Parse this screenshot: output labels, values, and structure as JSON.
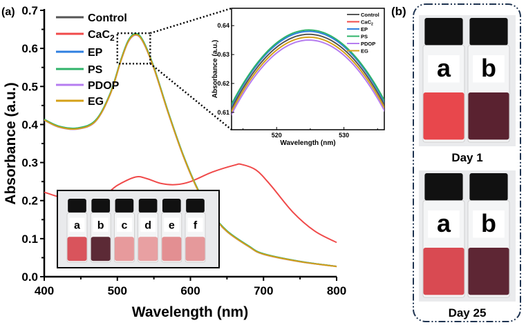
{
  "chart_data": [
    {
      "panel_label": "(a)",
      "type": "line",
      "xlabel": "Wavelength (nm)",
      "ylabel": "Absorbance (a.u.)",
      "xlim": [
        400,
        800
      ],
      "ylim": [
        0.0,
        0.7
      ],
      "xticks": [
        "400",
        "500",
        "600",
        "700",
        "800"
      ],
      "yticks": [
        "0.0",
        "0.1",
        "0.2",
        "0.3",
        "0.4",
        "0.5",
        "0.6",
        "0.7"
      ],
      "legend_position": "top-left",
      "series": [
        {
          "name": "Control",
          "sub": "",
          "color": "#555555",
          "offset": -0.001
        },
        {
          "name": "CaC",
          "sub": "2",
          "color": "#f04a4a",
          "offset": 0
        },
        {
          "name": "EP",
          "sub": "",
          "color": "#2f7fe0",
          "offset": 0.0005
        },
        {
          "name": "PS",
          "sub": "",
          "color": "#2fb36a",
          "offset": 0.001
        },
        {
          "name": "PDOP",
          "sub": "",
          "color": "#b57cf0",
          "offset": -0.003
        },
        {
          "name": "EG",
          "sub": "",
          "color": "#d4a017",
          "offset": -0.002
        }
      ],
      "nanoparticle_curve": {
        "x": [
          400,
          420,
          445,
          470,
          490,
          505,
          515,
          525,
          535,
          550,
          570,
          590,
          610,
          630,
          650,
          680,
          700,
          750,
          800
        ],
        "y": [
          0.413,
          0.395,
          0.39,
          0.41,
          0.48,
          0.57,
          0.62,
          0.638,
          0.62,
          0.55,
          0.43,
          0.32,
          0.23,
          0.165,
          0.12,
          0.08,
          0.06,
          0.04,
          0.027
        ]
      },
      "cac2_curve": {
        "x": [
          400,
          430,
          460,
          480,
          500,
          525,
          540,
          560,
          580,
          600,
          630,
          660,
          670,
          690,
          710,
          740,
          770,
          800
        ],
        "y": [
          0.222,
          0.205,
          0.203,
          0.21,
          0.24,
          0.262,
          0.258,
          0.245,
          0.242,
          0.25,
          0.275,
          0.293,
          0.295,
          0.28,
          0.24,
          0.17,
          0.12,
          0.09
        ]
      },
      "zoom_region": {
        "x": [
          500,
          545
        ],
        "y": [
          0.56,
          0.64
        ]
      },
      "photo_labels": [
        "a",
        "b",
        "c",
        "d",
        "e",
        "f"
      ]
    },
    {
      "type": "line",
      "role": "inset",
      "xlabel": "Wavelength (nm)",
      "ylabel": "Absorbance (a.u.)",
      "xlim": [
        513.3,
        536
      ],
      "ylim": [
        0.604,
        0.646
      ],
      "xticks": [
        "520",
        "530"
      ],
      "yticks": [
        "0.61",
        "0.62",
        "0.63",
        "0.64"
      ],
      "legend_position": "top-right",
      "peak_x": 524.8,
      "series": [
        {
          "name": "Control",
          "sub": "",
          "color": "#555555",
          "peak": 0.637
        },
        {
          "name": "CaC",
          "sub": "2",
          "color": "#f04a4a",
          "peak": null
        },
        {
          "name": "EP",
          "sub": "",
          "color": "#2f7fe0",
          "peak": 0.638
        },
        {
          "name": "PS",
          "sub": "",
          "color": "#2fb36a",
          "peak": 0.6385
        },
        {
          "name": "PDOP",
          "sub": "",
          "color": "#b57cf0",
          "peak": 0.635
        },
        {
          "name": "EG",
          "sub": "",
          "color": "#d4a017",
          "peak": 0.636
        }
      ]
    }
  ],
  "panel_b": {
    "panel_label": "(b)",
    "photos": [
      {
        "caption": "Day 1",
        "labels": [
          "a",
          "b"
        ]
      },
      {
        "caption": "Day 25",
        "labels": [
          "a",
          "b"
        ]
      }
    ]
  }
}
